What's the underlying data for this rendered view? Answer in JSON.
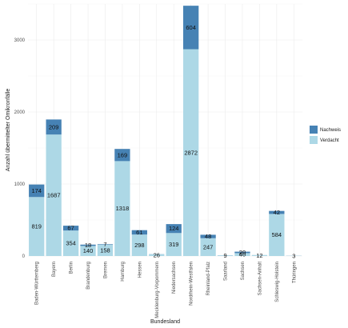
{
  "chart_data": {
    "type": "bar",
    "stacked": true,
    "title": "",
    "xlabel": "Bundesland",
    "ylabel": "Anzahl übermittelter Omikronfälle",
    "ylim": [
      0,
      3500
    ],
    "yticks": [
      0,
      1000,
      2000,
      3000
    ],
    "grid": true,
    "legend_position": "right",
    "categories": [
      "Baden-Württemberg",
      "Bayern",
      "Berlin",
      "Brandenburg",
      "Bremen",
      "Hamburg",
      "Hessen",
      "Mecklenburg-Vorpommern",
      "Niedersachsen",
      "Nordrhein-Westfalen",
      "Rheinland-Pfalz",
      "Saarland",
      "Sachsen",
      "Sachsen-Anhalt",
      "Schleswig-Holstein",
      "Thüringen"
    ],
    "series": [
      {
        "name": "Verdacht",
        "color": "#add8e6",
        "values": [
          819,
          1687,
          354,
          140,
          158,
          1318,
          298,
          26,
          319,
          2872,
          247,
          9,
          40,
          12,
          584,
          3
        ],
        "labels": [
          "819",
          "1687",
          "354",
          "140",
          "158",
          "1318",
          "298",
          "26",
          "319",
          "2872",
          "247",
          "9",
          "40",
          "12",
          "584",
          "3"
        ]
      },
      {
        "name": "Nachweis",
        "color": "#4682b4",
        "values": [
          174,
          209,
          67,
          18,
          7,
          169,
          61,
          1,
          124,
          604,
          48,
          1,
          20,
          1,
          42,
          1
        ],
        "labels": [
          "174",
          "209",
          "67",
          "18",
          "7",
          "169",
          "61",
          "",
          "124",
          "604",
          "48",
          "",
          "20",
          "",
          "42",
          ""
        ]
      }
    ],
    "legend_order": [
      "Nachweis",
      "Verdacht"
    ]
  }
}
